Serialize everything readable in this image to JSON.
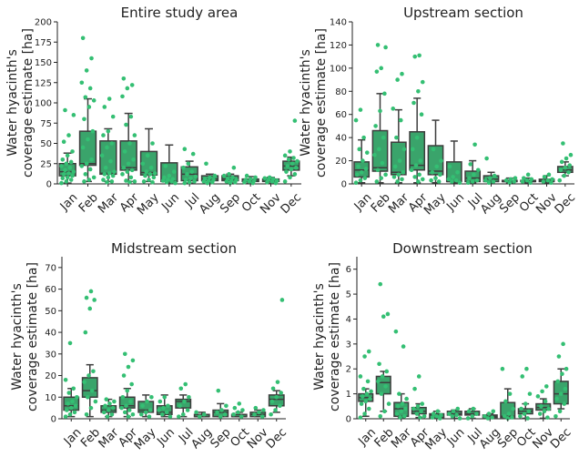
{
  "colors": {
    "box": "#3aa46b",
    "edge": "#3d3d3d",
    "point": "#34bf73",
    "axis": "#222222"
  },
  "months": [
    "Jan",
    "Feb",
    "Mar",
    "Apr",
    "May",
    "Jun",
    "Jul",
    "Aug",
    "Sep",
    "Oct",
    "Nov",
    "Dec"
  ],
  "chart_data": [
    {
      "type": "box",
      "title": "Entire study area",
      "ylabel_lines": [
        "Water hyacinth's",
        "coverage estimate [ha]"
      ],
      "ylim": [
        0,
        200
      ],
      "yticks": [
        0,
        25,
        50,
        75,
        100,
        125,
        150,
        175,
        200
      ],
      "categories": [
        "Jan",
        "Feb",
        "Mar",
        "Apr",
        "May",
        "Jun",
        "Jul",
        "Aug",
        "Sep",
        "Oct",
        "Nov",
        "Dec"
      ],
      "boxes": [
        {
          "whislo": 1,
          "q1": 10,
          "med": 15,
          "q3": 25,
          "whishi": 38
        },
        {
          "whislo": 3,
          "q1": 23,
          "med": 25,
          "q3": 65,
          "whishi": 105
        },
        {
          "whislo": 3,
          "q1": 12,
          "med": 13,
          "q3": 53,
          "whishi": 68
        },
        {
          "whislo": 3,
          "q1": 17,
          "med": 20,
          "q3": 53,
          "whishi": 87
        },
        {
          "whislo": 3,
          "q1": 11,
          "med": 14,
          "q3": 40,
          "whishi": 68
        },
        {
          "whislo": 1,
          "q1": 3,
          "med": 3,
          "q3": 26,
          "whishi": 48
        },
        {
          "whislo": 1,
          "q1": 4,
          "med": 12,
          "q3": 21,
          "whishi": 28
        },
        {
          "whislo": 1,
          "q1": 4,
          "med": 6,
          "q3": 10,
          "whishi": 12
        },
        {
          "whislo": 1,
          "q1": 4,
          "med": 6,
          "q3": 10,
          "whishi": 12
        },
        {
          "whislo": 1,
          "q1": 3,
          "med": 4,
          "q3": 6,
          "whishi": 9
        },
        {
          "whislo": 1,
          "q1": 3,
          "med": 5,
          "q3": 6,
          "whishi": 8
        },
        {
          "whislo": 10,
          "q1": 17,
          "med": 22,
          "q3": 28,
          "whishi": 33
        }
      ],
      "points": [
        [
          1,
          3,
          5,
          7,
          8,
          10,
          12,
          13,
          15,
          17,
          20,
          22,
          25,
          27,
          30,
          35,
          40,
          52,
          60,
          85,
          91
        ],
        [
          3,
          5,
          8,
          12,
          18,
          22,
          25,
          30,
          45,
          55,
          65,
          80,
          95,
          103,
          107,
          118,
          125,
          140,
          155,
          180
        ],
        [
          2,
          3,
          5,
          8,
          10,
          12,
          13,
          15,
          20,
          28,
          35,
          45,
          50,
          60,
          65,
          83,
          95,
          105
        ],
        [
          2,
          3,
          4,
          8,
          12,
          15,
          17,
          20,
          25,
          30,
          40,
          50,
          60,
          73,
          83,
          108,
          118,
          122,
          130
        ],
        [
          2,
          3,
          5,
          8,
          10,
          12,
          13,
          15,
          20,
          25,
          35,
          50
        ],
        [
          1,
          2,
          3,
          4,
          5,
          6,
          8,
          10,
          15,
          22
        ],
        [
          1,
          2,
          3,
          5,
          7,
          9,
          12,
          15,
          20,
          25,
          37,
          43
        ],
        [
          1,
          2,
          3,
          4,
          5,
          6,
          8,
          10,
          25
        ],
        [
          1,
          2,
          3,
          4,
          5,
          6,
          8,
          10,
          12,
          20
        ],
        [
          1,
          2,
          3,
          4,
          5,
          6,
          8,
          10
        ],
        [
          1,
          2,
          3,
          4,
          5,
          6,
          7,
          8
        ],
        [
          3,
          8,
          12,
          15,
          18,
          20,
          22,
          25,
          28,
          30,
          32,
          35,
          40,
          78
        ]
      ]
    },
    {
      "type": "box",
      "title": "Upstream section",
      "ylabel_lines": [
        "Water hyacinth's",
        "coverage estimate [ha]"
      ],
      "ylim": [
        0,
        140
      ],
      "yticks": [
        0,
        20,
        40,
        60,
        80,
        100,
        120,
        140
      ],
      "categories": [
        "Jan",
        "Feb",
        "Mar",
        "Apr",
        "May",
        "Jun",
        "Jul",
        "Aug",
        "Sep",
        "Oct",
        "Nov",
        "Dec"
      ],
      "boxes": [
        {
          "whislo": 1,
          "q1": 6,
          "med": 12,
          "q3": 19,
          "whishi": 38
        },
        {
          "whislo": 1,
          "q1": 11,
          "med": 14,
          "q3": 46,
          "whishi": 78
        },
        {
          "whislo": 1,
          "q1": 8,
          "med": 10,
          "q3": 36,
          "whishi": 64
        },
        {
          "whislo": 1,
          "q1": 12,
          "med": 16,
          "q3": 45,
          "whishi": 74
        },
        {
          "whislo": 1,
          "q1": 8,
          "med": 11,
          "q3": 33,
          "whishi": 55
        },
        {
          "whislo": 1,
          "q1": 2,
          "med": 2,
          "q3": 19,
          "whishi": 37
        },
        {
          "whislo": 1,
          "q1": 2,
          "med": 5,
          "q3": 11,
          "whishi": 20
        },
        {
          "whislo": 1,
          "q1": 2,
          "med": 4,
          "q3": 7,
          "whishi": 10
        },
        {
          "whislo": 1,
          "q1": 2,
          "med": 2,
          "q3": 3,
          "whishi": 5
        },
        {
          "whislo": 1,
          "q1": 2,
          "med": 2,
          "q3": 3,
          "whishi": 5
        },
        {
          "whislo": 1,
          "q1": 2,
          "med": 3,
          "q3": 4,
          "whishi": 7
        },
        {
          "whislo": 7,
          "q1": 10,
          "med": 12,
          "q3": 15,
          "whishi": 19
        }
      ],
      "points": [
        [
          1,
          3,
          5,
          8,
          10,
          13,
          15,
          20,
          27,
          30,
          40,
          55,
          64
        ],
        [
          2,
          5,
          8,
          12,
          18,
          25,
          30,
          40,
          50,
          63,
          78,
          97,
          100,
          118,
          120
        ],
        [
          2,
          4,
          6,
          8,
          10,
          15,
          20,
          30,
          40,
          55,
          65,
          90,
          95
        ],
        [
          2,
          4,
          6,
          8,
          12,
          16,
          20,
          30,
          40,
          60,
          70,
          80,
          88,
          110,
          111
        ],
        [
          2,
          3,
          5,
          8,
          10,
          15,
          20,
          30
        ],
        [
          1,
          2,
          3,
          4,
          6,
          10,
          15
        ],
        [
          1,
          2,
          3,
          5,
          8,
          12,
          17,
          34
        ],
        [
          1,
          2,
          3,
          5,
          7,
          22
        ],
        [
          1,
          2,
          3,
          4,
          5
        ],
        [
          1,
          2,
          3,
          4,
          5,
          8
        ],
        [
          1,
          2,
          3,
          4,
          6,
          8
        ],
        [
          3,
          7,
          10,
          12,
          14,
          16,
          19,
          22,
          25,
          35
        ]
      ]
    },
    {
      "type": "box",
      "title": "Midstream section",
      "ylabel_lines": [
        "Water hyacinth's",
        "coverage estimate [ha]"
      ],
      "ylim": [
        0,
        75
      ],
      "yticks": [
        0,
        10,
        20,
        30,
        40,
        50,
        60,
        70
      ],
      "categories": [
        "Jan",
        "Feb",
        "Mar",
        "Apr",
        "May",
        "Jun",
        "Jul",
        "Aug",
        "Sep",
        "Oct",
        "Nov",
        "Dec"
      ],
      "boxes": [
        {
          "whislo": 1,
          "q1": 4,
          "med": 6,
          "q3": 10,
          "whishi": 14
        },
        {
          "whislo": 1,
          "q1": 10,
          "med": 13,
          "q3": 19,
          "whishi": 25
        },
        {
          "whislo": 1,
          "q1": 3,
          "med": 4,
          "q3": 6,
          "whishi": 9
        },
        {
          "whislo": 1,
          "q1": 5,
          "med": 6,
          "q3": 10,
          "whishi": 14
        },
        {
          "whislo": 1,
          "q1": 3,
          "med": 4,
          "q3": 8,
          "whishi": 11
        },
        {
          "whislo": 1,
          "q1": 2,
          "med": 3,
          "q3": 6,
          "whishi": 11
        },
        {
          "whislo": 1,
          "q1": 5,
          "med": 8,
          "q3": 9,
          "whishi": 11
        },
        {
          "whislo": 1,
          "q1": 1,
          "med": 1,
          "q3": 2,
          "whishi": 3
        },
        {
          "whislo": 1,
          "q1": 1,
          "med": 3,
          "q3": 4,
          "whishi": 7
        },
        {
          "whislo": 1,
          "q1": 1,
          "med": 1,
          "q3": 2,
          "whishi": 3
        },
        {
          "whislo": 1,
          "q1": 1,
          "med": 2,
          "q3": 3,
          "whishi": 4
        },
        {
          "whislo": 3,
          "q1": 6,
          "med": 9,
          "q3": 11,
          "whishi": 13
        }
      ],
      "points": [
        [
          1,
          2,
          3,
          4,
          5,
          6,
          7,
          8,
          10,
          12,
          14,
          18,
          35
        ],
        [
          2,
          5,
          8,
          10,
          13,
          17,
          20,
          22,
          40,
          51,
          55,
          56,
          59
        ],
        [
          1,
          2,
          3,
          4,
          5,
          6,
          7,
          8,
          9
        ],
        [
          1,
          2,
          3,
          4,
          5,
          6,
          8,
          10,
          13,
          16,
          20,
          24,
          27,
          30
        ],
        [
          1,
          2,
          3,
          4,
          6,
          8,
          10
        ],
        [
          1,
          2,
          3,
          4,
          5,
          6,
          8,
          10
        ],
        [
          1,
          2,
          4,
          6,
          8,
          10,
          14,
          16
        ],
        [
          1,
          2,
          3
        ],
        [
          1,
          2,
          3,
          4,
          6,
          13
        ],
        [
          1,
          2,
          3,
          4,
          5,
          7
        ],
        [
          1,
          2,
          3,
          4,
          5
        ],
        [
          2,
          4,
          6,
          8,
          10,
          12,
          14,
          17,
          55
        ]
      ]
    },
    {
      "type": "box",
      "title": "Downstream section",
      "ylabel_lines": [
        "Water hyacinth's",
        "coverage estimate [ha]"
      ],
      "ylim": [
        0,
        6.5
      ],
      "yticks": [
        0,
        1,
        2,
        3,
        4,
        5,
        6
      ],
      "categories": [
        "Jan",
        "Feb",
        "Mar",
        "Apr",
        "May",
        "Jun",
        "Jul",
        "Aug",
        "Sep",
        "Oct",
        "Nov",
        "Dec"
      ],
      "boxes": [
        {
          "whislo": 0.1,
          "q1": 0.7,
          "med": 0.85,
          "q3": 1.0,
          "whishi": 1.2
        },
        {
          "whislo": 0.3,
          "q1": 1.0,
          "med": 1.45,
          "q3": 1.7,
          "whishi": 1.9
        },
        {
          "whislo": 0.05,
          "q1": 0.1,
          "med": 0.4,
          "q3": 0.65,
          "whishi": 1.0
        },
        {
          "whislo": 0.05,
          "q1": 0.2,
          "med": 0.3,
          "q3": 0.45,
          "whishi": 0.6
        },
        {
          "whislo": 0.02,
          "q1": 0.05,
          "med": 0.15,
          "q3": 0.2,
          "whishi": 0.3
        },
        {
          "whislo": 0.02,
          "q1": 0.15,
          "med": 0.2,
          "q3": 0.3,
          "whishi": 0.35
        },
        {
          "whislo": 0.02,
          "q1": 0.15,
          "med": 0.2,
          "q3": 0.3,
          "whishi": 0.4
        },
        {
          "whislo": 0.02,
          "q1": 0.05,
          "med": 0.1,
          "q3": 0.15,
          "whishi": 0.2
        },
        {
          "whislo": 0.02,
          "q1": 0.05,
          "med": 0.1,
          "q3": 0.65,
          "whishi": 1.2
        },
        {
          "whislo": 0.02,
          "q1": 0.2,
          "med": 0.3,
          "q3": 0.4,
          "whishi": 0.6
        },
        {
          "whislo": 0.02,
          "q1": 0.35,
          "med": 0.45,
          "q3": 0.6,
          "whishi": 0.8
        },
        {
          "whislo": 0.4,
          "q1": 0.6,
          "med": 1.0,
          "q3": 1.5,
          "whishi": 2.0
        }
      ],
      "points": [
        [
          0.05,
          0.2,
          0.4,
          0.6,
          0.7,
          0.8,
          0.9,
          1.0,
          1.1,
          1.2,
          1.5,
          1.7,
          2.5,
          2.7
        ],
        [
          0.1,
          0.3,
          0.6,
          1.0,
          1.3,
          1.5,
          1.7,
          1.9,
          2.2,
          4.1,
          4.2,
          5.4
        ],
        [
          0.05,
          0.1,
          0.2,
          0.3,
          0.4,
          0.5,
          0.6,
          0.8,
          1.0,
          2.9,
          3.5
        ],
        [
          0.05,
          0.1,
          0.2,
          0.3,
          0.4,
          0.5,
          0.6,
          1.2,
          1.7
        ],
        [
          0.02,
          0.05,
          0.1,
          0.15,
          0.2,
          0.3
        ],
        [
          0.02,
          0.1,
          0.15,
          0.2,
          0.3,
          0.4
        ],
        [
          0.02,
          0.1,
          0.2,
          0.3,
          0.4
        ],
        [
          0.02,
          0.05,
          0.1,
          0.2,
          0.3
        ],
        [
          0.02,
          0.05,
          0.1,
          0.2,
          0.4,
          0.7,
          1.0,
          2.0
        ],
        [
          0.02,
          0.1,
          0.2,
          0.3,
          0.4,
          0.6,
          1.0,
          1.7,
          2.0
        ],
        [
          0.05,
          0.2,
          0.3,
          0.4,
          0.5,
          0.7,
          0.9,
          1.1,
          1.3
        ],
        [
          0.1,
          0.3,
          0.6,
          0.8,
          1.0,
          1.2,
          1.5,
          1.8,
          2.0,
          2.5,
          3.0
        ]
      ]
    }
  ]
}
